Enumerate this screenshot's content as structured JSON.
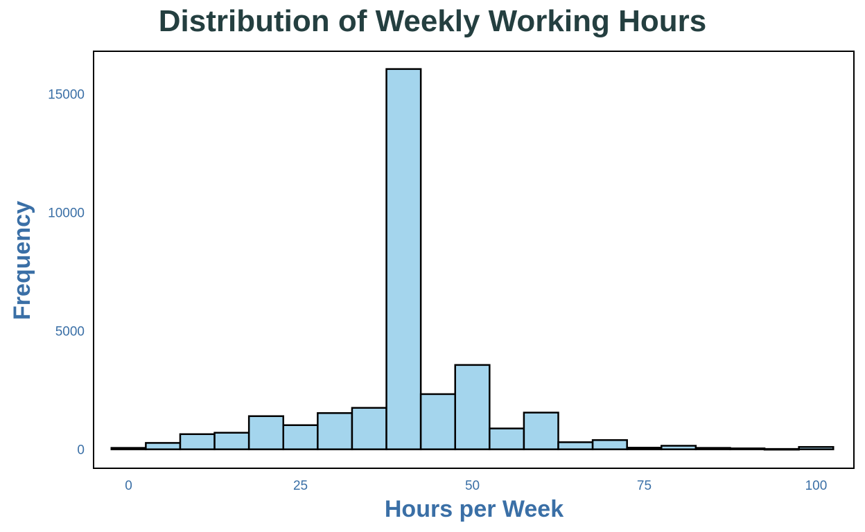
{
  "chart_data": {
    "type": "bar",
    "title": "Distribution of Weekly Working Hours",
    "xlabel": "Hours per Week",
    "ylabel": "Frequency",
    "bin_width": 5,
    "bins": [
      {
        "start": -2.5,
        "end": 2.5,
        "count": 60
      },
      {
        "start": 2.5,
        "end": 7.5,
        "count": 270
      },
      {
        "start": 7.5,
        "end": 12.5,
        "count": 640
      },
      {
        "start": 12.5,
        "end": 17.5,
        "count": 700
      },
      {
        "start": 17.5,
        "end": 22.5,
        "count": 1400
      },
      {
        "start": 22.5,
        "end": 27.5,
        "count": 1020
      },
      {
        "start": 27.5,
        "end": 32.5,
        "count": 1530
      },
      {
        "start": 32.5,
        "end": 37.5,
        "count": 1750
      },
      {
        "start": 37.5,
        "end": 42.5,
        "count": 16050
      },
      {
        "start": 42.5,
        "end": 47.5,
        "count": 2330
      },
      {
        "start": 47.5,
        "end": 52.5,
        "count": 3560
      },
      {
        "start": 52.5,
        "end": 57.5,
        "count": 880
      },
      {
        "start": 57.5,
        "end": 62.5,
        "count": 1550
      },
      {
        "start": 62.5,
        "end": 67.5,
        "count": 300
      },
      {
        "start": 67.5,
        "end": 72.5,
        "count": 390
      },
      {
        "start": 72.5,
        "end": 77.5,
        "count": 70
      },
      {
        "start": 77.5,
        "end": 82.5,
        "count": 150
      },
      {
        "start": 82.5,
        "end": 87.5,
        "count": 60
      },
      {
        "start": 87.5,
        "end": 92.5,
        "count": 40
      },
      {
        "start": 92.5,
        "end": 97.5,
        "count": 15
      },
      {
        "start": 97.5,
        "end": 102.5,
        "count": 100
      }
    ],
    "x_ticks": [
      0,
      25,
      50,
      75,
      100
    ],
    "y_ticks": [
      0,
      5000,
      10000,
      15000
    ],
    "xlim": [
      -5.1,
      105.5
    ],
    "ylim": [
      -800,
      16800
    ],
    "grid": false,
    "colors": {
      "bar_fill": "#a4d5ed",
      "bar_stroke": "#000000",
      "axis_text": "#3a6fa6",
      "title": "#243f40"
    }
  }
}
